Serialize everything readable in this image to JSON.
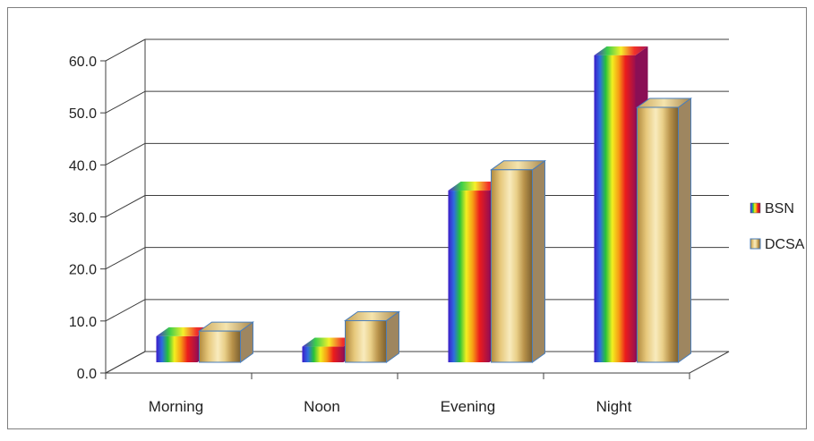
{
  "chart_data": {
    "type": "bar",
    "style": "3d-clustered-column",
    "title": "",
    "xlabel": "",
    "ylabel": "",
    "categories": [
      "Morning",
      "Noon",
      "Evening",
      "Night"
    ],
    "series": [
      {
        "name": "BSN",
        "values": [
          5.0,
          3.0,
          33.0,
          59.0
        ]
      },
      {
        "name": "DCSA",
        "values": [
          6.0,
          8.0,
          37.0,
          49.0
        ]
      }
    ],
    "ylim": [
      0,
      60
    ],
    "y_ticks": [
      "0.0",
      "10.0",
      "20.0",
      "30.0",
      "40.0",
      "50.0",
      "60.0"
    ],
    "grid": true,
    "legend_position": "right",
    "colors": {
      "frame": "#7f7f7f",
      "grid": "#3f3f3f",
      "dcsa_light": "#f2dc9a",
      "dcsa_dark": "#a88a4a",
      "dcsa_side": "#9e8660",
      "bar_outline": "#4a7ebb"
    }
  }
}
